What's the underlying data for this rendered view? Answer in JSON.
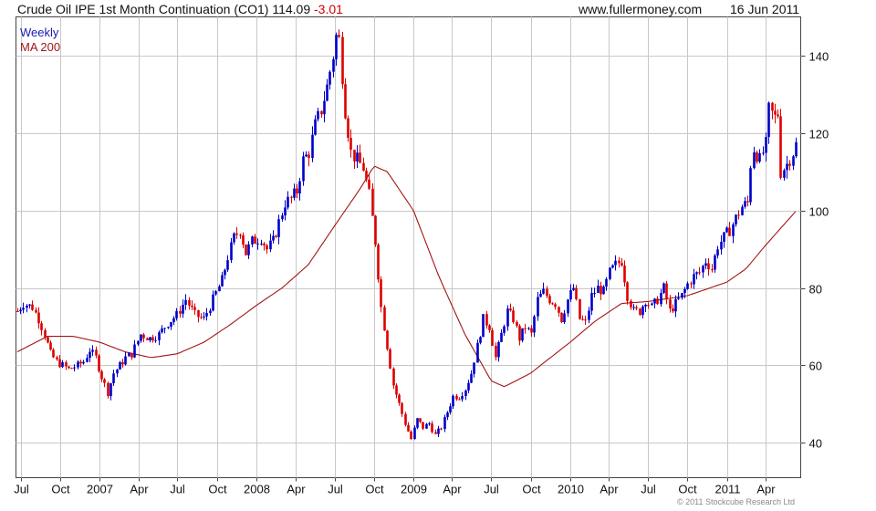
{
  "header": {
    "title": "Crude Oil IPE 1st Month Continuation (CO1) 114.09",
    "change": "-3.01",
    "site": "www.fullermoney.com",
    "date": "16 Jun 2011"
  },
  "copyright": "© 2011 Stockcube Research Ltd",
  "colors": {
    "up": "#0000cc",
    "down": "#dd0000",
    "ma": "#a31515",
    "grid": "#c8c8c8"
  },
  "chart_data": {
    "type": "candlestick",
    "frequency": "weekly",
    "legend": [
      "Weekly",
      "MA 200"
    ],
    "legend_placement": "top-left",
    "grid": true,
    "y_axis_side": "right",
    "ylim": [
      31,
      150
    ],
    "y_ticks": [
      40,
      60,
      80,
      100,
      120,
      140
    ],
    "x_ticks": [
      {
        "label": "Jul",
        "date": "2006-07-01"
      },
      {
        "label": "Oct",
        "date": "2006-10-01"
      },
      {
        "label": "2007",
        "date": "2007-01-01"
      },
      {
        "label": "Apr",
        "date": "2007-04-01"
      },
      {
        "label": "Jul",
        "date": "2007-07-01"
      },
      {
        "label": "Oct",
        "date": "2007-10-01"
      },
      {
        "label": "2008",
        "date": "2008-01-01"
      },
      {
        "label": "Apr",
        "date": "2008-04-01"
      },
      {
        "label": "Jul",
        "date": "2008-07-01"
      },
      {
        "label": "Oct",
        "date": "2008-10-01"
      },
      {
        "label": "2009",
        "date": "2009-01-01"
      },
      {
        "label": "Apr",
        "date": "2009-04-01"
      },
      {
        "label": "Jul",
        "date": "2009-07-01"
      },
      {
        "label": "Oct",
        "date": "2009-10-01"
      },
      {
        "label": "2010",
        "date": "2010-01-01"
      },
      {
        "label": "Apr",
        "date": "2010-04-01"
      },
      {
        "label": "Jul",
        "date": "2010-07-01"
      },
      {
        "label": "Oct",
        "date": "2010-10-01"
      },
      {
        "label": "2011",
        "date": "2011-01-01"
      },
      {
        "label": "Apr",
        "date": "2011-04-01"
      }
    ],
    "close_anchors": [
      [
        "2006-06-23",
        74
      ],
      [
        "2006-07-07",
        76
      ],
      [
        "2006-07-28",
        75
      ],
      [
        "2006-08-11",
        72
      ],
      [
        "2006-08-25",
        68
      ],
      [
        "2006-09-08",
        63
      ],
      [
        "2006-09-22",
        61
      ],
      [
        "2006-10-06",
        60
      ],
      [
        "2006-10-20",
        59
      ],
      [
        "2006-11-10",
        60
      ],
      [
        "2006-11-24",
        61
      ],
      [
        "2006-12-08",
        64
      ],
      [
        "2006-12-22",
        62
      ],
      [
        "2007-01-05",
        57
      ],
      [
        "2007-01-19",
        53
      ],
      [
        "2007-02-02",
        58
      ],
      [
        "2007-02-16",
        60
      ],
      [
        "2007-03-02",
        62
      ],
      [
        "2007-03-16",
        63
      ],
      [
        "2007-04-06",
        68
      ],
      [
        "2007-04-27",
        67
      ],
      [
        "2007-05-18",
        68
      ],
      [
        "2007-06-08",
        71
      ],
      [
        "2007-06-29",
        73
      ],
      [
        "2007-07-20",
        77
      ],
      [
        "2007-08-10",
        73
      ],
      [
        "2007-08-31",
        72
      ],
      [
        "2007-09-21",
        77
      ],
      [
        "2007-10-12",
        82
      ],
      [
        "2007-10-26",
        88
      ],
      [
        "2007-11-09",
        93
      ],
      [
        "2007-11-23",
        95
      ],
      [
        "2007-12-07",
        89
      ],
      [
        "2007-12-21",
        92
      ],
      [
        "2008-01-11",
        93
      ],
      [
        "2008-01-25",
        90
      ],
      [
        "2008-02-08",
        92
      ],
      [
        "2008-02-22",
        97
      ],
      [
        "2008-03-07",
        102
      ],
      [
        "2008-03-21",
        103
      ],
      [
        "2008-04-04",
        105
      ],
      [
        "2008-04-18",
        113
      ],
      [
        "2008-05-02",
        115
      ],
      [
        "2008-05-16",
        122
      ],
      [
        "2008-05-30",
        126
      ],
      [
        "2008-06-13",
        132
      ],
      [
        "2008-06-27",
        140
      ],
      [
        "2008-07-04",
        145
      ],
      [
        "2008-07-11",
        144
      ],
      [
        "2008-07-25",
        126
      ],
      [
        "2008-08-08",
        115
      ],
      [
        "2008-08-22",
        113
      ],
      [
        "2008-09-05",
        111
      ],
      [
        "2008-09-19",
        104
      ],
      [
        "2008-10-03",
        92
      ],
      [
        "2008-10-17",
        75
      ],
      [
        "2008-10-31",
        65
      ],
      [
        "2008-11-14",
        55
      ],
      [
        "2008-11-28",
        50
      ],
      [
        "2008-12-12",
        45
      ],
      [
        "2008-12-26",
        41
      ],
      [
        "2009-01-09",
        46
      ],
      [
        "2009-01-23",
        44
      ],
      [
        "2009-02-06",
        45
      ],
      [
        "2009-02-20",
        42
      ],
      [
        "2009-03-06",
        44
      ],
      [
        "2009-03-20",
        48
      ],
      [
        "2009-04-03",
        52
      ],
      [
        "2009-04-17",
        52
      ],
      [
        "2009-05-01",
        54
      ],
      [
        "2009-05-15",
        58
      ],
      [
        "2009-05-29",
        65
      ],
      [
        "2009-06-12",
        72
      ],
      [
        "2009-06-26",
        70
      ],
      [
        "2009-07-10",
        62
      ],
      [
        "2009-07-24",
        68
      ],
      [
        "2009-08-07",
        74
      ],
      [
        "2009-08-21",
        72
      ],
      [
        "2009-09-04",
        67
      ],
      [
        "2009-09-18",
        70
      ],
      [
        "2009-10-02",
        68
      ],
      [
        "2009-10-16",
        77
      ],
      [
        "2009-10-30",
        79
      ],
      [
        "2009-11-13",
        77
      ],
      [
        "2009-11-27",
        76
      ],
      [
        "2009-12-11",
        72
      ],
      [
        "2009-12-25",
        77
      ],
      [
        "2010-01-08",
        80
      ],
      [
        "2010-01-22",
        72
      ],
      [
        "2010-02-05",
        71
      ],
      [
        "2010-02-19",
        78
      ],
      [
        "2010-03-05",
        80
      ],
      [
        "2010-03-19",
        79
      ],
      [
        "2010-04-02",
        84
      ],
      [
        "2010-04-16",
        86
      ],
      [
        "2010-04-30",
        87
      ],
      [
        "2010-05-14",
        78
      ],
      [
        "2010-05-28",
        74
      ],
      [
        "2010-06-11",
        74
      ],
      [
        "2010-06-25",
        77
      ],
      [
        "2010-07-09",
        75
      ],
      [
        "2010-07-23",
        77
      ],
      [
        "2010-08-06",
        80
      ],
      [
        "2010-08-20",
        74
      ],
      [
        "2010-09-03",
        76
      ],
      [
        "2010-09-17",
        78
      ],
      [
        "2010-10-01",
        81
      ],
      [
        "2010-10-15",
        83
      ],
      [
        "2010-10-29",
        84
      ],
      [
        "2010-11-12",
        87
      ],
      [
        "2010-11-26",
        85
      ],
      [
        "2010-12-10",
        91
      ],
      [
        "2010-12-24",
        93
      ],
      [
        "2011-01-07",
        95
      ],
      [
        "2011-01-21",
        98
      ],
      [
        "2011-02-04",
        101
      ],
      [
        "2011-02-18",
        102
      ],
      [
        "2011-02-25",
        112
      ],
      [
        "2011-03-04",
        116
      ],
      [
        "2011-03-18",
        113
      ],
      [
        "2011-04-01",
        117
      ],
      [
        "2011-04-08",
        126
      ],
      [
        "2011-04-22",
        124
      ],
      [
        "2011-04-29",
        125
      ],
      [
        "2011-05-06",
        110
      ],
      [
        "2011-05-20",
        112
      ],
      [
        "2011-06-03",
        115
      ],
      [
        "2011-06-10",
        117
      ],
      [
        "2011-06-16",
        114.09
      ]
    ],
    "ma200_anchors": [
      [
        "2006-06-23",
        63.5
      ],
      [
        "2006-09-01",
        67.5
      ],
      [
        "2006-11-01",
        67.5
      ],
      [
        "2007-01-01",
        66
      ],
      [
        "2007-03-01",
        63.5
      ],
      [
        "2007-05-01",
        62
      ],
      [
        "2007-07-01",
        63
      ],
      [
        "2007-09-01",
        66
      ],
      [
        "2007-11-01",
        70.5
      ],
      [
        "2008-01-01",
        75.5
      ],
      [
        "2008-03-01",
        80
      ],
      [
        "2008-05-01",
        86
      ],
      [
        "2008-07-01",
        96
      ],
      [
        "2008-09-01",
        106
      ],
      [
        "2008-10-01",
        111.5
      ],
      [
        "2008-11-01",
        110
      ],
      [
        "2009-01-01",
        100
      ],
      [
        "2009-03-01",
        83
      ],
      [
        "2009-05-01",
        68
      ],
      [
        "2009-07-01",
        56
      ],
      [
        "2009-08-01",
        54.5
      ],
      [
        "2009-10-01",
        58
      ],
      [
        "2010-01-01",
        66
      ],
      [
        "2010-03-01",
        71.5
      ],
      [
        "2010-05-01",
        76
      ],
      [
        "2010-07-01",
        76.5
      ],
      [
        "2010-10-01",
        78
      ],
      [
        "2011-01-01",
        81.5
      ],
      [
        "2011-02-15",
        85
      ],
      [
        "2011-04-01",
        91
      ],
      [
        "2011-06-16",
        100.5
      ]
    ]
  }
}
